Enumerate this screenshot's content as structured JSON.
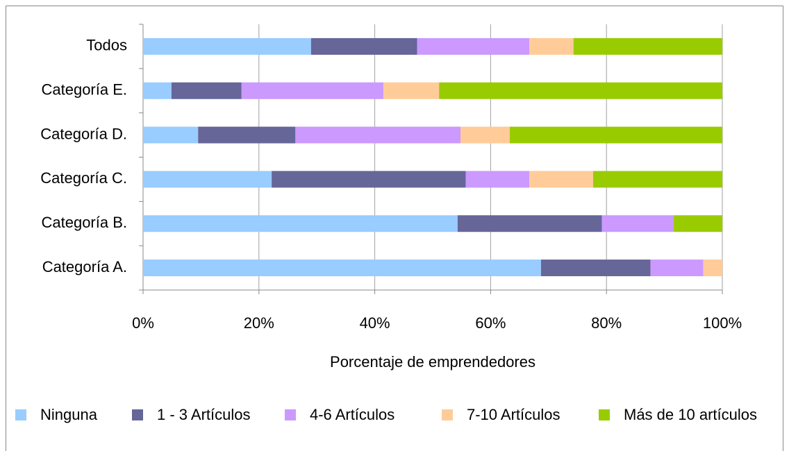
{
  "chart_data": {
    "type": "stacked_barh",
    "x_label": "Porcentaje de emprendedores",
    "categories": [
      "Todos",
      "Categoría E.",
      "Categoría D.",
      "Categoría C.",
      "Categoría B.",
      "Categoría A."
    ],
    "series": [
      {
        "name": "Ninguna",
        "color": "#99ccff",
        "values": [
          29.0,
          4.9,
          9.5,
          22.2,
          54.3,
          68.7
        ]
      },
      {
        "name": "1 - 3 Artículos",
        "color": "#666699",
        "values": [
          18.3,
          12.1,
          16.8,
          33.5,
          24.9,
          18.9
        ]
      },
      {
        "name": "4-6 Artículos",
        "color": "#cc99ff",
        "values": [
          19.4,
          24.5,
          28.5,
          11.0,
          12.4,
          9.1
        ]
      },
      {
        "name": "7-10 Artículos",
        "color": "#ffcc99",
        "values": [
          7.6,
          9.6,
          8.5,
          11.0,
          0,
          3.3
        ]
      },
      {
        "name": "Más de 10 artículos",
        "color": "#99cc00",
        "values": [
          25.7,
          48.9,
          36.7,
          22.3,
          8.4,
          0
        ]
      }
    ],
    "xlim": [
      0,
      100
    ],
    "xticks": [
      {
        "value": 0,
        "label": "0%"
      },
      {
        "value": 20,
        "label": "20%"
      },
      {
        "value": 40,
        "label": "40%"
      },
      {
        "value": 60,
        "label": "60%"
      },
      {
        "value": 80,
        "label": "80%"
      },
      {
        "value": 100,
        "label": "100%"
      }
    ],
    "grid": true,
    "legend": "bottom"
  }
}
